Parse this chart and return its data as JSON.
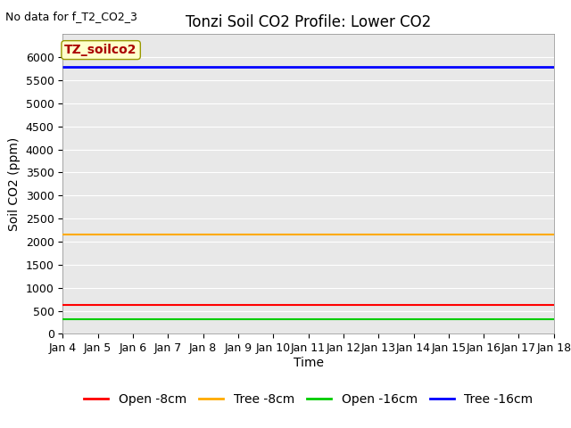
{
  "title": "Tonzi Soil CO2 Profile: Lower CO2",
  "no_data_text": "No data for f_T2_CO2_3",
  "ylabel": "Soil CO2 (ppm)",
  "xlabel": "Time",
  "annotation_label": "TZ_soilco2",
  "annotation_box_color": "#ffffcc",
  "annotation_text_color": "#aa0000",
  "ylim": [
    0,
    6500
  ],
  "yticks": [
    0,
    500,
    1000,
    1500,
    2000,
    2500,
    3000,
    3500,
    4000,
    4500,
    5000,
    5500,
    6000
  ],
  "x_start": 0,
  "x_end": 14,
  "x_tick_pos": [
    0,
    1,
    2,
    3,
    4,
    5,
    6,
    7,
    8,
    9,
    10,
    11,
    12,
    13,
    14
  ],
  "x_tick_labels": [
    "Jan 4",
    "Jan 5",
    "Jan 6",
    "Jan 7",
    "Jan 8",
    "Jan 9",
    "Jan 10",
    "Jan 11",
    "Jan 12",
    "Jan 13",
    "Jan 14",
    "Jan 15",
    "Jan 16",
    "Jan 17",
    "Jan 18"
  ],
  "lines": [
    {
      "label": "Open -8cm",
      "color": "#ff0000",
      "value": 630,
      "linewidth": 1.5
    },
    {
      "label": "Tree -8cm",
      "color": "#ffaa00",
      "value": 2150,
      "linewidth": 1.5
    },
    {
      "label": "Open -16cm",
      "color": "#00cc00",
      "value": 310,
      "linewidth": 1.5
    },
    {
      "label": "Tree -16cm",
      "color": "#0000ff",
      "value": 5790,
      "linewidth": 2.0
    }
  ],
  "background_color": "#e8e8e8",
  "grid_color": "#ffffff",
  "title_fontsize": 12,
  "label_fontsize": 10,
  "tick_fontsize": 9,
  "nodata_fontsize": 9,
  "annot_fontsize": 10,
  "legend_fontsize": 10
}
